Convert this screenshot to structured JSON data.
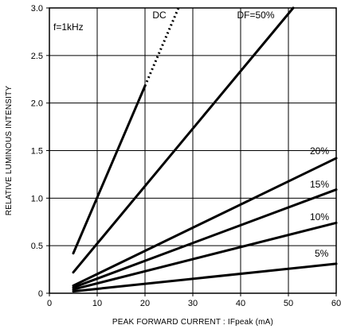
{
  "chart_data": {
    "type": "line",
    "title": "",
    "xlabel": "PEAK FORWARD CURRENT : IFpeak (mA)",
    "ylabel": "RELATIVE LUMINOUS INTENSITY",
    "xlim": [
      0,
      60
    ],
    "ylim": [
      0,
      3.0
    ],
    "x_ticks": [
      0,
      10,
      20,
      30,
      40,
      50,
      60
    ],
    "y_ticks": [
      0,
      0.5,
      1.0,
      1.5,
      2.0,
      2.5,
      3.0
    ],
    "x_tick_labels": [
      "0",
      "10",
      "20",
      "30",
      "40",
      "50",
      "60"
    ],
    "y_tick_labels": [
      "0",
      "0.5",
      "1.0",
      "1.5",
      "2.0",
      "2.5",
      "3.0"
    ],
    "grid": true,
    "condition_label": "f=1kHz",
    "series": [
      {
        "name": "DC",
        "x": [
          5,
          20
        ],
        "y": [
          0.42,
          2.18
        ],
        "dotted_extension": {
          "x": [
            20,
            27
          ],
          "y": [
            2.18,
            3.0
          ]
        }
      },
      {
        "name": "DF=50%",
        "x": [
          5,
          51
        ],
        "y": [
          0.22,
          3.0
        ]
      },
      {
        "name": "20%",
        "x": [
          5,
          60
        ],
        "y": [
          0.08,
          1.42
        ]
      },
      {
        "name": "15%",
        "x": [
          5,
          60
        ],
        "y": [
          0.06,
          1.09
        ]
      },
      {
        "name": "10%",
        "x": [
          5,
          60
        ],
        "y": [
          0.04,
          0.74
        ]
      },
      {
        "name": "5%",
        "x": [
          5,
          60
        ],
        "y": [
          0.02,
          0.31
        ]
      }
    ]
  }
}
